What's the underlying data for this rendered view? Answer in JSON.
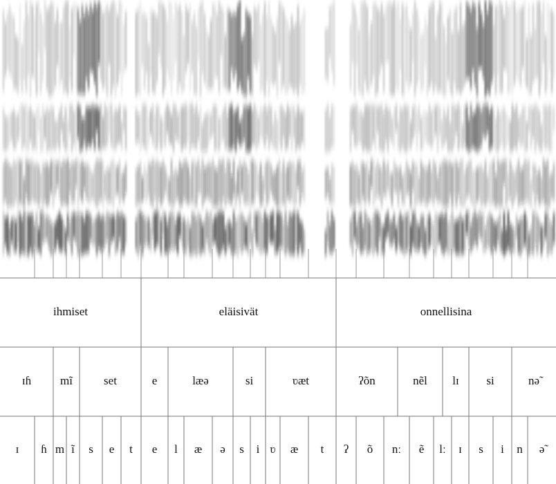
{
  "words": [
    "ihmiset",
    "eläisivät",
    "onnellisina"
  ],
  "syllables": [
    "ɪɦ",
    "mĩ",
    "set",
    "e",
    "læə",
    "si",
    "ʋæt",
    "ʔõn",
    "nẽl",
    "lɪ",
    "si",
    "nə̃"
  ],
  "phones": [
    "ɪ",
    "ɦ",
    "m",
    "ĩ",
    "s",
    "e",
    "t",
    "e",
    "l",
    "æ",
    "ə",
    "s",
    "i",
    "ʋ",
    "æ",
    "t",
    "ʔ",
    "õ",
    "nː",
    "ẽ",
    "lː",
    "ɪ",
    "s",
    "i",
    "n",
    "ə̃"
  ]
}
